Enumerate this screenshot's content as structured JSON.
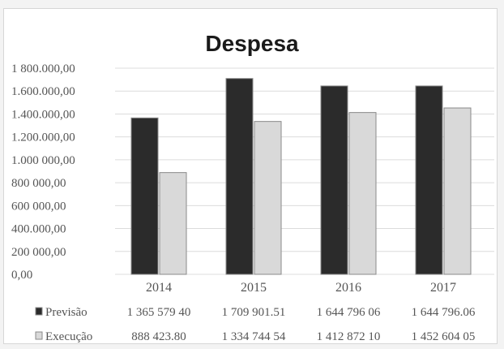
{
  "chart_data": {
    "type": "bar",
    "title": "Despesa",
    "categories": [
      "2014",
      "2015",
      "2016",
      "2017"
    ],
    "series": [
      {
        "name": "Previsão",
        "values": [
          1365579.4,
          1709901.51,
          1644796.06,
          1644796.06
        ],
        "labels": [
          "1 365 579 40",
          "1 709 901.51",
          "1 644 796 06",
          "1 644 796.06"
        ]
      },
      {
        "name": "Execução",
        "values": [
          888423.8,
          1334744.54,
          1412872.1,
          1452604.05
        ],
        "labels": [
          "888 423.80",
          "1 334 744 54",
          "1 412 872 10",
          "1 452 604 05"
        ]
      }
    ],
    "ylim": [
      0,
      1800000
    ],
    "yticks": [
      "0,00",
      "200 000,00",
      "400.000,00",
      "600 000,00",
      "800 000,00",
      "1.000 000,00",
      "1.200.000,00",
      "1.400.000,00",
      "1.600.000,00",
      "1 800.000,00"
    ],
    "grid": true,
    "legend": "data-table-below",
    "colors": {
      "previsao": "#2b2b2b",
      "execucao": "#d9d9d9",
      "edge": "#8a8a8a",
      "grid": "#dcdcdc",
      "text": "#555555"
    }
  }
}
